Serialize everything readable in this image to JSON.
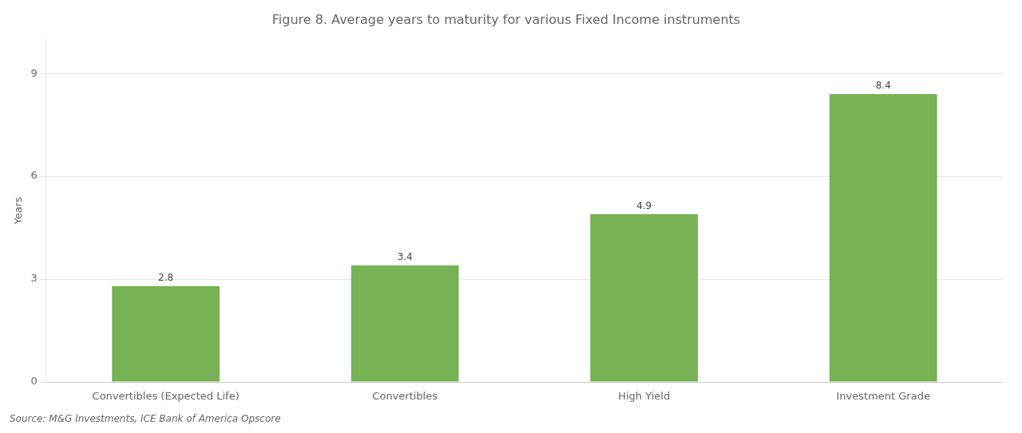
{
  "chart_data": {
    "type": "bar",
    "title": "Figure 8. Average years to maturity for various Fixed Income instruments",
    "categories": [
      "Convertibles (Expected Life)",
      "Convertibles",
      "High Yield",
      "Investment Grade"
    ],
    "values": [
      2.8,
      3.4,
      4.9,
      8.4
    ],
    "color": "#77b255",
    "ylabel": "Years",
    "ylim": [
      0,
      10
    ],
    "yticks": [
      0,
      3,
      6,
      9
    ],
    "grid": true,
    "data_labels": true,
    "annotations": [
      "Source: M&G Investments, ICE Bank of America Opscore"
    ]
  }
}
